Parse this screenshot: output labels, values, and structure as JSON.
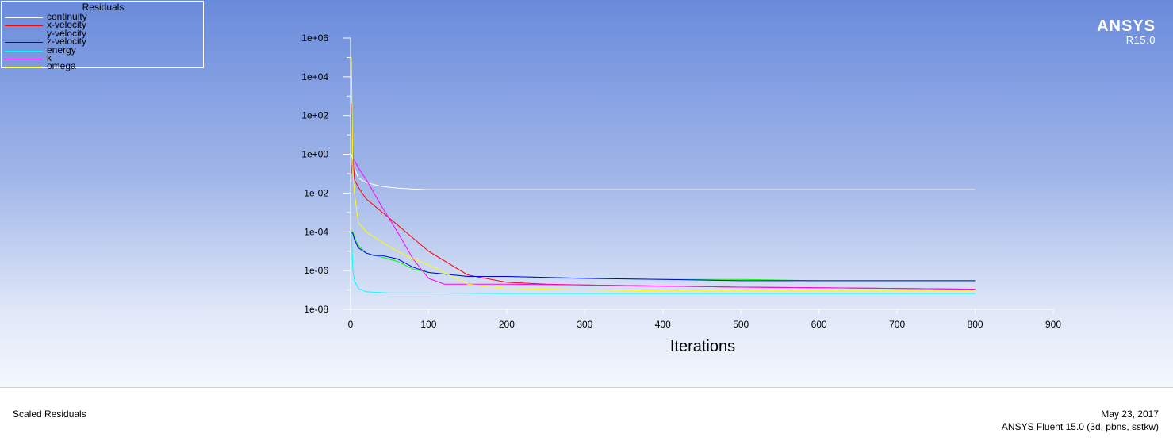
{
  "header": {
    "brand": "ANSYS",
    "version": "R15.0"
  },
  "footer": {
    "plot_name": "Scaled Residuals",
    "date": "May 23, 2017",
    "solver_info": "ANSYS Fluent 15.0 (3d, pbns, sstkw)"
  },
  "colors": {
    "continuity": "#ffffff",
    "x_velocity": "#ff0000",
    "y_velocity": "#00ff00",
    "z_velocity": "#0000ff",
    "energy": "#00ffff",
    "k": "#ff00ff",
    "omega": "#ffff00"
  },
  "chart_data": {
    "type": "line",
    "legend_title": "Residuals",
    "legend_position": "top-left",
    "xlabel": "Iterations",
    "ylabel": "",
    "xlim": [
      0,
      900
    ],
    "ylim": [
      1e-08,
      1000000.0
    ],
    "yscale": "log",
    "grid": false,
    "x_ticks": [
      "0",
      "100",
      "200",
      "300",
      "400",
      "500",
      "600",
      "700",
      "800",
      "900"
    ],
    "y_ticks": [
      "1e-08",
      "1e-06",
      "1e-04",
      "1e-02",
      "1e+00",
      "1e+02",
      "1e+04",
      "1e+06"
    ],
    "series": [
      {
        "name": "continuity",
        "color": "#ffffff",
        "x": [
          1,
          3,
          5,
          10,
          20,
          40,
          60,
          80,
          100,
          150,
          200,
          300,
          400,
          500,
          600,
          700,
          800
        ],
        "y": [
          1.0,
          0.5,
          0.2,
          0.06,
          0.035,
          0.022,
          0.018,
          0.016,
          0.015,
          0.015,
          0.015,
          0.015,
          0.015,
          0.015,
          0.015,
          0.015,
          0.015
        ]
      },
      {
        "name": "x-velocity",
        "color": "#ff0000",
        "x": [
          1,
          3,
          5,
          10,
          20,
          50,
          100,
          150,
          200,
          250,
          300,
          400,
          500,
          600,
          700,
          800
        ],
        "y": [
          400,
          1.0,
          0.05,
          0.02,
          0.005,
          0.0005,
          1e-05,
          6e-07,
          2.5e-07,
          2e-07,
          1.8e-07,
          1.6e-07,
          1.4e-07,
          1.3e-07,
          1.2e-07,
          1.1e-07
        ]
      },
      {
        "name": "y-velocity",
        "color": "#00ff00",
        "x": [
          1,
          3,
          5,
          10,
          20,
          40,
          60,
          80,
          100,
          150,
          200,
          300,
          400,
          500,
          600,
          700,
          800
        ],
        "y": [
          8e-05,
          0.0001,
          5e-05,
          2e-05,
          8e-06,
          5e-06,
          3e-06,
          1.2e-06,
          8e-07,
          5e-07,
          5e-07,
          4e-07,
          3.5e-07,
          3.5e-07,
          3e-07,
          3e-07,
          3e-07
        ]
      },
      {
        "name": "z-velocity",
        "color": "#0000ff",
        "x": [
          1,
          3,
          5,
          10,
          20,
          30,
          40,
          60,
          80,
          100,
          150,
          200,
          300,
          400,
          500,
          600,
          700,
          800
        ],
        "y": [
          0.0001,
          8e-05,
          4e-05,
          1.5e-05,
          8e-06,
          6e-06,
          6e-06,
          4e-06,
          1.5e-06,
          8e-07,
          5e-07,
          5e-07,
          4e-07,
          3.5e-07,
          3e-07,
          3e-07,
          3e-07,
          3e-07
        ]
      },
      {
        "name": "energy",
        "color": "#00ffff",
        "x": [
          1,
          2,
          3,
          5,
          10,
          20,
          50,
          100,
          200,
          400,
          600,
          800
        ],
        "y": [
          0.0001,
          1e-05,
          1e-06,
          3e-07,
          1.2e-07,
          8e-08,
          7e-08,
          7e-08,
          6.5e-08,
          6.5e-08,
          6.5e-08,
          6.5e-08
        ]
      },
      {
        "name": "k",
        "color": "#ff00ff",
        "x": [
          1,
          3,
          5,
          10,
          20,
          40,
          60,
          80,
          100,
          120,
          150,
          200,
          300,
          400,
          500,
          600,
          700,
          800
        ],
        "y": [
          0.1,
          0.6,
          0.5,
          0.2,
          0.05,
          0.002,
          0.0001,
          4e-06,
          4e-07,
          2e-07,
          2e-07,
          2e-07,
          1.8e-07,
          1.6e-07,
          1.4e-07,
          1.3e-07,
          1.2e-07,
          1.1e-07
        ]
      },
      {
        "name": "omega",
        "color": "#ffff00",
        "x": [
          1,
          2,
          3,
          5,
          10,
          20,
          40,
          60,
          80,
          100,
          120,
          150,
          200,
          300,
          400,
          500,
          600,
          700,
          800
        ],
        "y": [
          100000.0,
          100,
          0.1,
          0.01,
          0.0003,
          0.0001,
          3e-05,
          1e-05,
          4e-06,
          2e-06,
          8e-07,
          2e-07,
          1.2e-07,
          1e-07,
          9e-08,
          9e-08,
          9e-08,
          9e-08,
          9e-08
        ]
      }
    ]
  }
}
